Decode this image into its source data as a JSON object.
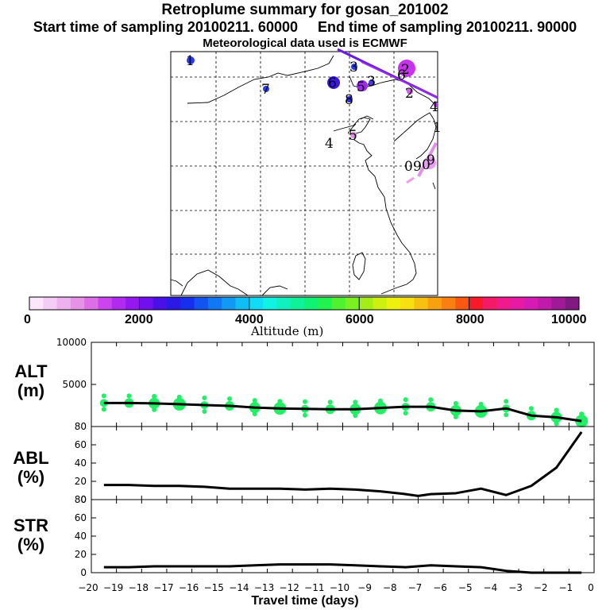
{
  "title": "Retroplume summary for gosan_201002",
  "start_label": "Start time of sampling 20100211. 60000",
  "end_label": "End time of sampling 20100211. 90000",
  "met_label": "Meteorological data used is ECMWF",
  "map": {
    "markers": [
      "1",
      "2",
      "3",
      "4",
      "5",
      "6",
      "7",
      "8",
      "0",
      "9",
      "1",
      "2",
      "3",
      "4",
      "5",
      "6",
      "0",
      "9"
    ]
  },
  "colorbar": {
    "title": "Altitude (m)",
    "tick_labels": [
      "0",
      "2000",
      "4000",
      "6000",
      "8000",
      "10000"
    ],
    "colors": [
      "#fbe6fb",
      "#f5ccf5",
      "#eeb0ee",
      "#e692e6",
      "#dd6ee6",
      "#cc44ee",
      "#b02aef",
      "#9418ef",
      "#7010ef",
      "#4a10e8",
      "#2a1ae8",
      "#1430ee",
      "#1254f0",
      "#1078f2",
      "#109af4",
      "#10bef6",
      "#10dcf6",
      "#10f2e2",
      "#10f2be",
      "#10f29a",
      "#10f274",
      "#20f24e",
      "#50f230",
      "#7af020",
      "#a4ee18",
      "#cef010",
      "#eef010",
      "#f8e010",
      "#f8c010",
      "#f8a010",
      "#f88010",
      "#f85810",
      "#f81a28",
      "#f41a68",
      "#f01a8c",
      "#e81aa4",
      "#d81ab4",
      "#c01aaa",
      "#a01a98",
      "#801a80"
    ]
  },
  "panels": [
    {
      "label_line1": "ALT",
      "label_line2": "(m)"
    },
    {
      "label_line1": "ABL",
      "label_line2": "(%)"
    },
    {
      "label_line1": "STR",
      "label_line2": "(%)"
    }
  ],
  "x_axis_label": "Travel time (days)",
  "chart_data": [
    {
      "type": "line",
      "title": "ALT (m)",
      "xlabel": "Travel time (days)",
      "ylabel": "ALT (m)",
      "xlim": [
        -20,
        0
      ],
      "ylim": [
        0,
        10000
      ],
      "yticks": [
        5000,
        10000
      ],
      "xticks": [
        -20,
        -19,
        -18,
        -17,
        -16,
        -15,
        -14,
        -13,
        -12,
        -11,
        -10,
        -9,
        -8,
        -7,
        -6,
        -5,
        -4,
        -3,
        -2,
        -1,
        0
      ],
      "x": [
        -19.5,
        -18.5,
        -17.5,
        -16.5,
        -15.5,
        -14.5,
        -13.5,
        -12.5,
        -11.5,
        -10.5,
        -9.5,
        -8.5,
        -7.5,
        -6.5,
        -5.5,
        -4.5,
        -3.5,
        -2.5,
        -1.5,
        -0.5
      ],
      "values": [
        2800,
        2800,
        2750,
        2650,
        2550,
        2450,
        2250,
        2150,
        2100,
        2050,
        2050,
        2200,
        2350,
        2350,
        1900,
        1800,
        2150,
        1300,
        1100,
        650
      ],
      "scatter_color": "#22ee66"
    },
    {
      "type": "line",
      "title": "ABL (%)",
      "xlim": [
        -20,
        0
      ],
      "ylim": [
        0,
        80
      ],
      "yticks": [
        0,
        20,
        40,
        60,
        80
      ],
      "x": [
        -19.5,
        -18.5,
        -17.5,
        -16.5,
        -15.5,
        -14.5,
        -13.5,
        -12.5,
        -11.5,
        -10.5,
        -9.5,
        -8.5,
        -7.5,
        -7,
        -6.5,
        -5.5,
        -4.5,
        -3.5,
        -2.5,
        -1.5,
        -0.5
      ],
      "values": [
        16,
        16,
        15,
        15,
        14,
        12,
        12,
        12,
        11,
        12,
        11,
        9,
        6,
        4,
        6,
        7,
        12,
        5,
        15,
        35,
        74
      ]
    },
    {
      "type": "line",
      "title": "STR (%)",
      "xlim": [
        -20,
        0
      ],
      "ylim": [
        0,
        80
      ],
      "yticks": [
        0,
        20,
        40,
        60,
        80
      ],
      "x": [
        -19.5,
        -18.5,
        -17.5,
        -16.5,
        -15.5,
        -14.5,
        -13.5,
        -12.5,
        -11.5,
        -10.5,
        -9.5,
        -8.5,
        -7.5,
        -6.5,
        -5.5,
        -4.5,
        -3.5,
        -2.5,
        -1.5,
        -0.5
      ],
      "values": [
        6,
        6,
        7,
        7,
        7,
        7,
        8,
        9,
        9,
        9,
        8,
        7,
        6,
        8,
        7,
        6,
        2,
        0,
        0,
        0
      ]
    }
  ]
}
